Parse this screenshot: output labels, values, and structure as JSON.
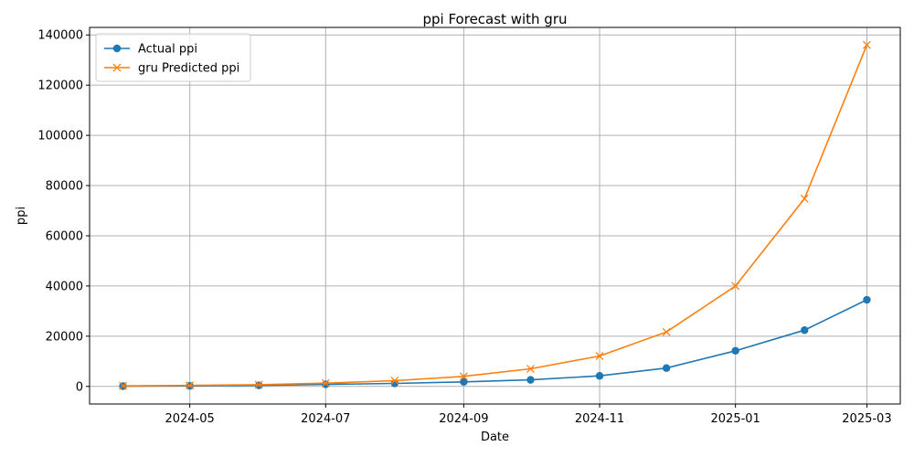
{
  "chart_data": {
    "type": "line",
    "title": "ppi Forecast with gru",
    "xlabel": "Date",
    "ylabel": "ppi",
    "x": [
      "2024-04-01",
      "2024-05-01",
      "2024-06-01",
      "2024-07-01",
      "2024-08-01",
      "2024-09-01",
      "2024-10-01",
      "2024-11-01",
      "2024-12-01",
      "2025-01-01",
      "2025-02-01",
      "2025-03-01"
    ],
    "xlim": [
      "2024-03-17",
      "2025-03-16"
    ],
    "xticks": [
      "2024-05",
      "2024-07",
      "2024-09",
      "2024-11",
      "2025-01",
      "2025-03"
    ],
    "ylim": [
      -7000,
      143000
    ],
    "yticks": [
      0,
      20000,
      40000,
      60000,
      80000,
      100000,
      120000,
      140000
    ],
    "grid": true,
    "legend_position": "top-left",
    "series": [
      {
        "name": "Actual ppi",
        "color": "#1f77b4",
        "marker": "circle",
        "values": [
          100,
          200,
          400,
          800,
          1200,
          1800,
          2600,
          4200,
          7300,
          14200,
          22400,
          34500
        ]
      },
      {
        "name": "gru Predicted ppi",
        "color": "#ff7f0e",
        "marker": "x",
        "values": [
          200,
          400,
          700,
          1300,
          2300,
          4000,
          7000,
          12100,
          21700,
          40000,
          74800,
          136000
        ]
      }
    ]
  }
}
